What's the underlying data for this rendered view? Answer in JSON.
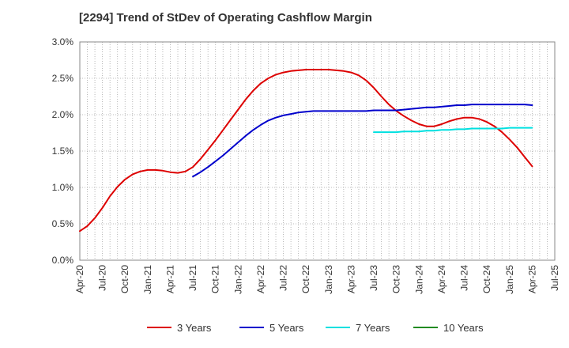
{
  "chart_data": {
    "type": "line",
    "title": "[2294]  Trend of StDev of Operating Cashflow Margin",
    "xlabel": "",
    "ylabel": "",
    "x_ticks": [
      "Apr-20",
      "Jul-20",
      "Oct-20",
      "Jan-21",
      "Apr-21",
      "Jul-21",
      "Oct-21",
      "Jan-22",
      "Apr-22",
      "Jul-22",
      "Oct-22",
      "Jan-23",
      "Apr-23",
      "Jul-23",
      "Oct-23",
      "Jan-24",
      "Apr-24",
      "Jul-24",
      "Oct-24",
      "Jan-25",
      "Apr-25",
      "Jul-25"
    ],
    "y_ticks": [
      "0.0%",
      "0.5%",
      "1.0%",
      "1.5%",
      "2.0%",
      "2.5%",
      "3.0%"
    ],
    "ylim": [
      0,
      3.0
    ],
    "grid": true,
    "legend_position": "bottom",
    "series": [
      {
        "name": "3 Years",
        "color": "#dd0000",
        "x": [
          "Apr-20",
          "May-20",
          "Jun-20",
          "Jul-20",
          "Aug-20",
          "Sep-20",
          "Oct-20",
          "Nov-20",
          "Dec-20",
          "Jan-21",
          "Feb-21",
          "Mar-21",
          "Apr-21",
          "May-21",
          "Jun-21",
          "Jul-21",
          "Aug-21",
          "Sep-21",
          "Oct-21",
          "Nov-21",
          "Dec-21",
          "Jan-22",
          "Feb-22",
          "Mar-22",
          "Apr-22",
          "May-22",
          "Jun-22",
          "Jul-22",
          "Aug-22",
          "Sep-22",
          "Oct-22",
          "Nov-22",
          "Dec-22",
          "Jan-23",
          "Feb-23",
          "Mar-23",
          "Apr-23",
          "May-23",
          "Jun-23",
          "Jul-23",
          "Aug-23",
          "Sep-23",
          "Oct-23",
          "Nov-23",
          "Dec-23",
          "Jan-24",
          "Feb-24",
          "Mar-24",
          "Apr-24",
          "May-24",
          "Jun-24",
          "Jul-24",
          "Aug-24",
          "Sep-24",
          "Oct-24",
          "Nov-24",
          "Dec-24",
          "Jan-25",
          "Feb-25",
          "Mar-25",
          "Apr-25"
        ],
        "values": [
          0.4,
          0.47,
          0.58,
          0.72,
          0.88,
          1.01,
          1.11,
          1.18,
          1.22,
          1.24,
          1.24,
          1.23,
          1.21,
          1.2,
          1.22,
          1.28,
          1.39,
          1.52,
          1.65,
          1.79,
          1.93,
          2.07,
          2.21,
          2.33,
          2.43,
          2.5,
          2.55,
          2.58,
          2.6,
          2.61,
          2.62,
          2.62,
          2.62,
          2.62,
          2.61,
          2.6,
          2.58,
          2.54,
          2.47,
          2.37,
          2.25,
          2.14,
          2.05,
          1.98,
          1.92,
          1.87,
          1.84,
          1.84,
          1.87,
          1.91,
          1.94,
          1.96,
          1.96,
          1.94,
          1.9,
          1.84,
          1.76,
          1.66,
          1.55,
          1.42,
          1.29
        ]
      },
      {
        "name": "5 Years",
        "color": "#0000cc",
        "x": [
          "Jul-21",
          "Aug-21",
          "Sep-21",
          "Oct-21",
          "Nov-21",
          "Dec-21",
          "Jan-22",
          "Feb-22",
          "Mar-22",
          "Apr-22",
          "May-22",
          "Jun-22",
          "Jul-22",
          "Aug-22",
          "Sep-22",
          "Oct-22",
          "Nov-22",
          "Dec-22",
          "Jan-23",
          "Feb-23",
          "Mar-23",
          "Apr-23",
          "May-23",
          "Jun-23",
          "Jul-23",
          "Aug-23",
          "Sep-23",
          "Oct-23",
          "Nov-23",
          "Dec-23",
          "Jan-24",
          "Feb-24",
          "Mar-24",
          "Apr-24",
          "May-24",
          "Jun-24",
          "Jul-24",
          "Aug-24",
          "Sep-24",
          "Oct-24",
          "Nov-24",
          "Dec-24",
          "Jan-25",
          "Feb-25",
          "Mar-25",
          "Apr-25"
        ],
        "values": [
          1.15,
          1.21,
          1.28,
          1.36,
          1.44,
          1.53,
          1.62,
          1.71,
          1.79,
          1.86,
          1.92,
          1.96,
          1.99,
          2.01,
          2.03,
          2.04,
          2.05,
          2.05,
          2.05,
          2.05,
          2.05,
          2.05,
          2.05,
          2.05,
          2.06,
          2.06,
          2.06,
          2.06,
          2.07,
          2.08,
          2.09,
          2.1,
          2.1,
          2.11,
          2.12,
          2.13,
          2.13,
          2.14,
          2.14,
          2.14,
          2.14,
          2.14,
          2.14,
          2.14,
          2.14,
          2.13
        ]
      },
      {
        "name": "7 Years",
        "color": "#00e0e0",
        "x": [
          "Jul-23",
          "Aug-23",
          "Sep-23",
          "Oct-23",
          "Nov-23",
          "Dec-23",
          "Jan-24",
          "Feb-24",
          "Mar-24",
          "Apr-24",
          "May-24",
          "Jun-24",
          "Jul-24",
          "Aug-24",
          "Sep-24",
          "Oct-24",
          "Nov-24",
          "Dec-24",
          "Jan-25",
          "Feb-25",
          "Mar-25",
          "Apr-25"
        ],
        "values": [
          1.76,
          1.76,
          1.76,
          1.76,
          1.77,
          1.77,
          1.77,
          1.78,
          1.78,
          1.79,
          1.79,
          1.8,
          1.8,
          1.81,
          1.81,
          1.81,
          1.81,
          1.81,
          1.82,
          1.82,
          1.82,
          1.82
        ]
      },
      {
        "name": "10 Years",
        "color": "#228b22",
        "x": [],
        "values": []
      }
    ]
  }
}
